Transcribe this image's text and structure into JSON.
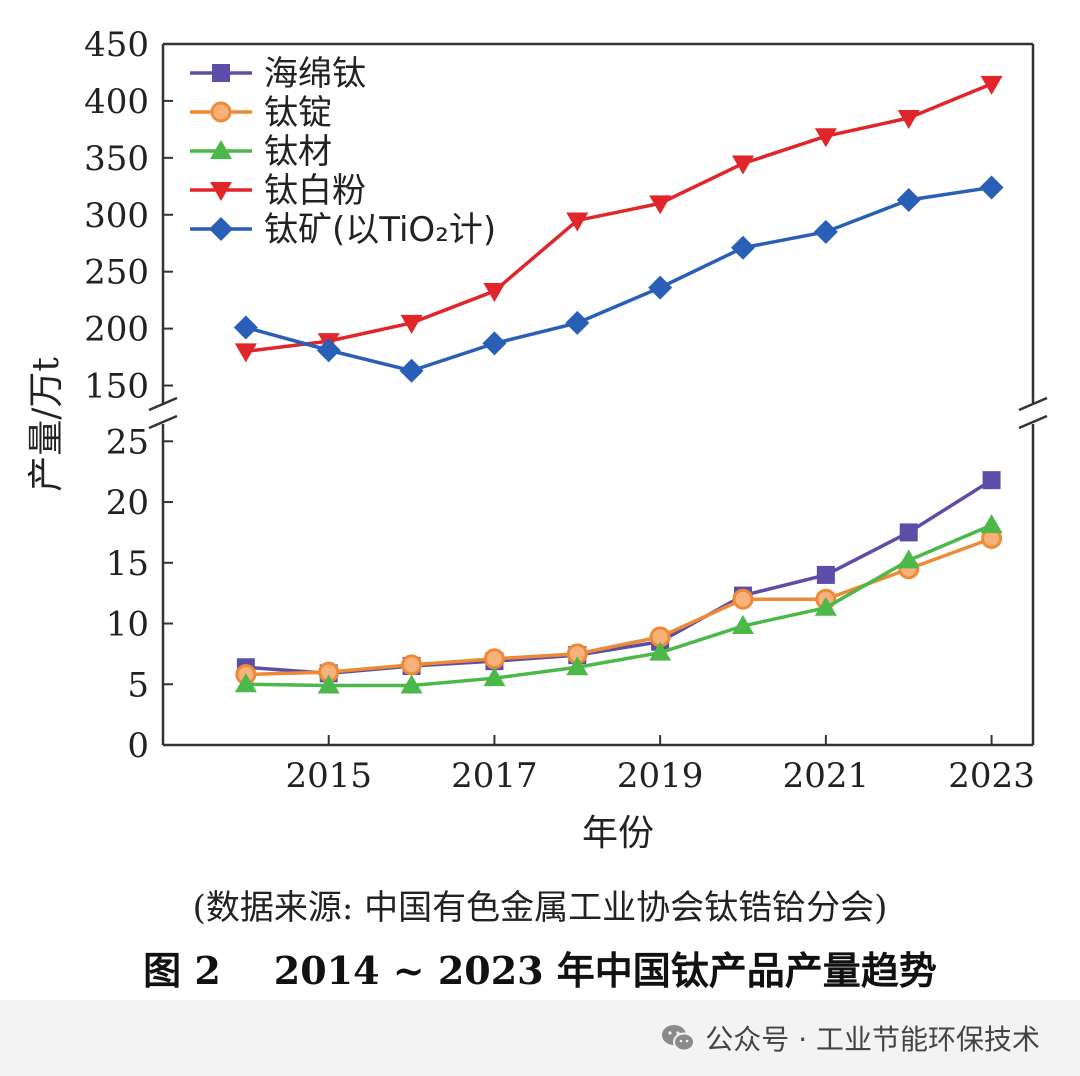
{
  "chart_data": {
    "type": "line",
    "xlabel": "年份",
    "ylabel": "产量/万t",
    "x": [
      2014,
      2015,
      2016,
      2017,
      2018,
      2019,
      2020,
      2021,
      2022,
      2023
    ],
    "x_ticks": [
      "2015",
      "2017",
      "2019",
      "2021",
      "2023"
    ],
    "x_tick_values": [
      2015,
      2017,
      2019,
      2021,
      2023
    ],
    "xlim": [
      2013.0,
      2023.5
    ],
    "broken_y_axis": true,
    "upper_panel": {
      "ylim": [
        125,
        450
      ],
      "y_ticks": [
        "150",
        "200",
        "250",
        "300",
        "350",
        "400",
        "450"
      ],
      "y_tick_values": [
        150,
        200,
        250,
        300,
        350,
        400,
        450
      ]
    },
    "lower_panel": {
      "ylim": [
        0,
        27
      ],
      "y_ticks": [
        "0",
        "5",
        "10",
        "15",
        "20",
        "25"
      ],
      "y_tick_values": [
        0,
        5,
        10,
        15,
        20,
        25
      ]
    },
    "legend_position": "top-left",
    "series": [
      {
        "name": "海绵钛",
        "panel": "lower",
        "marker": "square",
        "color": "#5b4ea8",
        "values": [
          6.4,
          5.9,
          6.5,
          6.9,
          7.4,
          8.5,
          12.3,
          14.0,
          17.5,
          21.8
        ]
      },
      {
        "name": "钛锭",
        "panel": "lower",
        "marker": "circle",
        "color": "#ee8a35",
        "values": [
          5.8,
          6.0,
          6.6,
          7.1,
          7.5,
          8.9,
          12.0,
          12.0,
          14.5,
          17.0
        ]
      },
      {
        "name": "钛材",
        "panel": "lower",
        "marker": "triangle-up",
        "color": "#4db84a",
        "values": [
          5.0,
          4.9,
          4.9,
          5.5,
          6.4,
          7.6,
          9.8,
          11.3,
          15.2,
          18.1
        ]
      },
      {
        "name": "钛白粉",
        "panel": "upper",
        "marker": "triangle-down",
        "color": "#e0252b",
        "values": [
          180,
          189,
          205,
          233,
          295,
          310,
          345,
          369,
          385,
          415
        ]
      },
      {
        "name": "钛矿(以TiO₂计)",
        "panel": "upper",
        "marker": "diamond",
        "color": "#2a5fb8",
        "values": [
          201,
          181,
          163,
          187,
          205,
          236,
          271,
          285,
          313,
          324
        ]
      }
    ]
  },
  "source_note": "(数据来源: 中国有色金属工业协会钛锆铪分会)",
  "figure_caption": "图 2    2014 ~ 2023 年中国钛产品产量趋势",
  "footer": {
    "icon": "wechat-icon",
    "text": "公众号 · 工业节能环保技术"
  }
}
